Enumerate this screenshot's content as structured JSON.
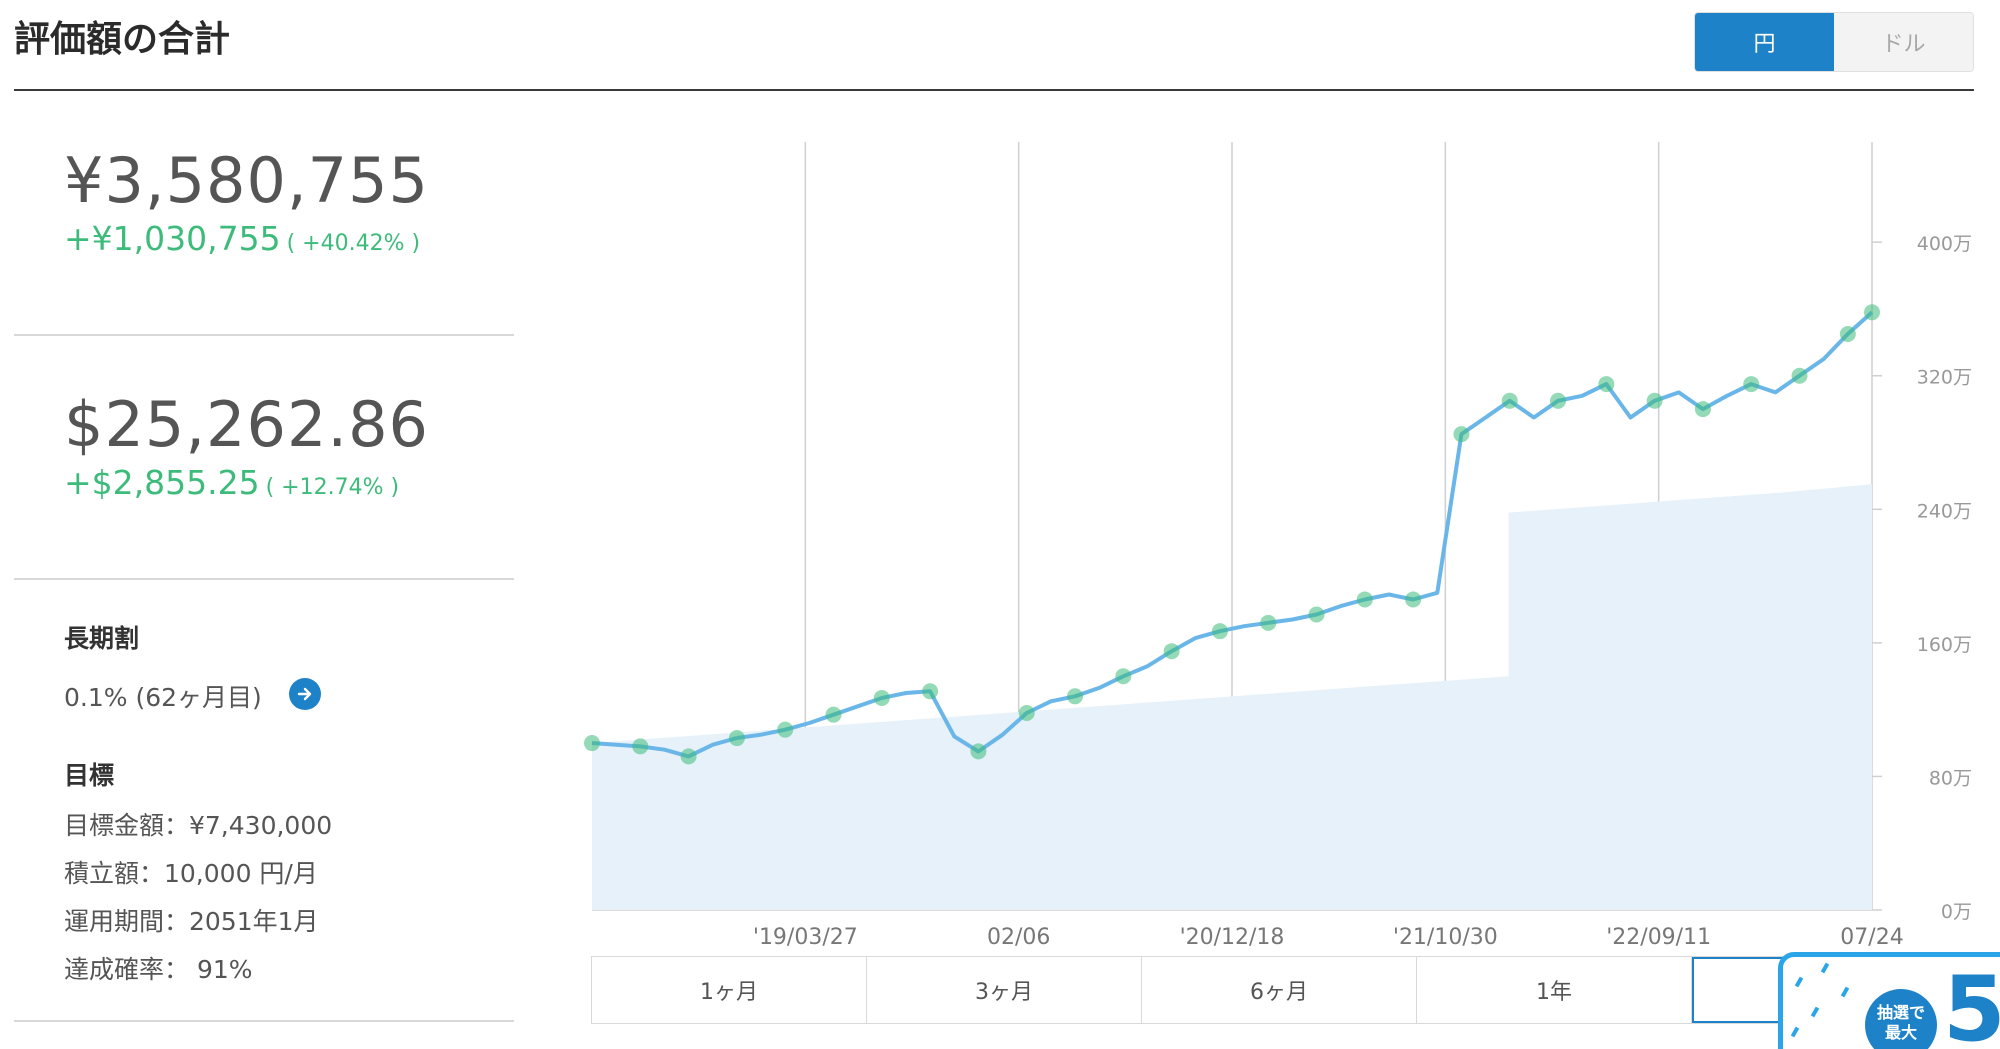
{
  "header": {
    "title": "評価額の合計",
    "currency_yen": "円",
    "currency_dollar": "ドル"
  },
  "summary": {
    "yen_total": "¥3,580,755",
    "yen_gain": "+¥1,030,755",
    "yen_gain_pct": "( +40.42% )",
    "usd_total": "$25,262.86",
    "usd_gain": "+$2,855.25",
    "usd_gain_pct": "( +12.74% )"
  },
  "discount": {
    "label": "長期割",
    "value": "0.1% (62ヶ月目)"
  },
  "goal": {
    "label": "目標",
    "target_amount": "目標金額：¥7,430,000",
    "monthly_contribution": "積立額：10,000 円/月",
    "period": "運用期間：2051年1月",
    "probability": "達成確率： 91%"
  },
  "range_buttons": [
    "1ヶ月",
    "3ヶ月",
    "6ヶ月",
    "1年",
    ""
  ],
  "promo": {
    "badge_line1": "抽選で",
    "badge_line2": "最大",
    "number": "5"
  },
  "colors": {
    "accent": "#1e82c8",
    "gain": "#3dbb7a",
    "line": "#6ab6e8",
    "dots": "#3dbb7a",
    "fill": "#e6f1f9"
  },
  "chart_data": {
    "type": "line",
    "x_tick_labels": [
      "'19/03/27",
      "02/06",
      "'20/12/18",
      "'21/10/30",
      "'22/09/11",
      "07/24"
    ],
    "y_tick_labels": [
      "0万",
      "80万",
      "160万",
      "240万",
      "320万",
      "400万"
    ],
    "ylim": [
      0,
      4600000
    ],
    "series": [
      {
        "values_yen": [
          1000000,
          990000,
          980000,
          960000,
          920000,
          990000,
          1030000,
          1050000,
          1080000,
          1120000,
          1170000,
          1220000,
          1270000,
          1300000,
          1310000,
          1040000,
          950000,
          1050000,
          1180000,
          1250000,
          1280000,
          1330000,
          1400000,
          1460000,
          1550000,
          1630000,
          1670000,
          1700000,
          1720000,
          1740000,
          1770000,
          1820000,
          1860000,
          1890000,
          1860000,
          1900000,
          2850000,
          2950000,
          3050000,
          2950000,
          3050000,
          3080000,
          3150000,
          2950000,
          3050000,
          3100000,
          3000000,
          3080000,
          3150000,
          3100000,
          3200000,
          3300000,
          3450000,
          3580000
        ]
      },
      {
        "values_yen": [
          1000000,
          1040000,
          1080000,
          1120000,
          1160000,
          1200000,
          1240000,
          1280000,
          1320000,
          1360000,
          1400000,
          2380000,
          2420000,
          2460000,
          2500000,
          2550000
        ]
      }
    ]
  }
}
